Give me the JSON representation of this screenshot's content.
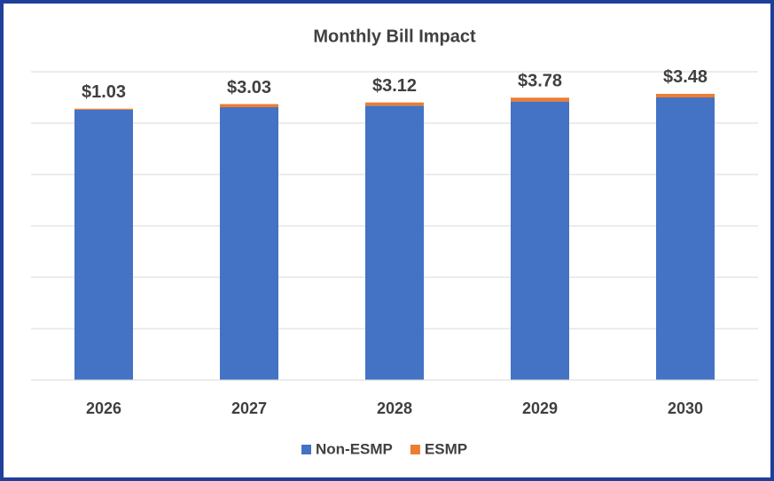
{
  "chart_data": {
    "type": "stacked_bar",
    "title": "Monthly Bill Impact",
    "categories": [
      "2026",
      "2027",
      "2028",
      "2029",
      "2030"
    ],
    "series": [
      {
        "name": "Non-ESMP",
        "color": "#4472c4",
        "values": [
          263,
          265.5,
          267,
          271,
          275
        ]
      },
      {
        "name": "ESMP",
        "color": "#ed7d31",
        "values": [
          1.03,
          3.03,
          3.12,
          3.78,
          3.48
        ],
        "value_labels": [
          "$1.03",
          "$3.03",
          "$3.12",
          "$3.78",
          "$3.48"
        ]
      }
    ],
    "ylim": [
      0,
      300
    ],
    "yticks": [
      0,
      50,
      100,
      150,
      200,
      250,
      300
    ],
    "grid": true,
    "legend": "bottom"
  }
}
